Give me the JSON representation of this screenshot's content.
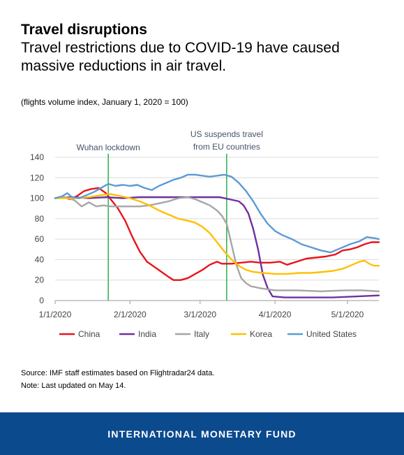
{
  "header": {
    "title": "Travel disruptions",
    "subtitle": "Travel restrictions due to COVID-19 have caused massive reductions in air travel."
  },
  "unit_note": "(flights volume index, January 1, 2020 = 100)",
  "source": {
    "line1": "Source: IMF staff estimates based on Flightradar24 data.",
    "line2": "Note: Last updated on May 14."
  },
  "footer": {
    "label": "INTERNATIONAL MONETARY FUND"
  },
  "chart_data": {
    "type": "line",
    "title": "",
    "xlabel": "",
    "ylabel": "",
    "x_range": [
      "2020-01-01",
      "2020-05-14"
    ],
    "xticks": [
      {
        "date": "2020-01-01",
        "label": "1/1/2020"
      },
      {
        "date": "2020-02-01",
        "label": "2/1/2020"
      },
      {
        "date": "2020-03-01",
        "label": "3/1/2020"
      },
      {
        "date": "2020-04-01",
        "label": "4/1/2020"
      },
      {
        "date": "2020-05-01",
        "label": "5/1/2020"
      }
    ],
    "ylim": [
      0,
      140
    ],
    "yticks": [
      0,
      20,
      40,
      60,
      80,
      100,
      120,
      140
    ],
    "grid": "horizontal",
    "legend_position": "bottom",
    "annotations": [
      {
        "date": "2020-01-23",
        "label": "Wuhan lockdown",
        "color": "#2db14a"
      },
      {
        "date": "2020-03-12",
        "label_lines": [
          "US suspends travel",
          "from EU countries"
        ],
        "color": "#2db14a"
      }
    ],
    "series": [
      {
        "name": "China",
        "color": "#e8141b",
        "points": [
          [
            "2020-01-01",
            100
          ],
          [
            "2020-01-05",
            101
          ],
          [
            "2020-01-07",
            99
          ],
          [
            "2020-01-10",
            102
          ],
          [
            "2020-01-13",
            107
          ],
          [
            "2020-01-16",
            109
          ],
          [
            "2020-01-19",
            110
          ],
          [
            "2020-01-22",
            105
          ],
          [
            "2020-01-24",
            99
          ],
          [
            "2020-01-27",
            90
          ],
          [
            "2020-01-30",
            78
          ],
          [
            "2020-02-02",
            62
          ],
          [
            "2020-02-05",
            48
          ],
          [
            "2020-02-08",
            38
          ],
          [
            "2020-02-11",
            33
          ],
          [
            "2020-02-14",
            28
          ],
          [
            "2020-02-17",
            23
          ],
          [
            "2020-02-19",
            20
          ],
          [
            "2020-02-22",
            20
          ],
          [
            "2020-02-25",
            22
          ],
          [
            "2020-02-28",
            26
          ],
          [
            "2020-03-02",
            30
          ],
          [
            "2020-03-05",
            35
          ],
          [
            "2020-03-08",
            38
          ],
          [
            "2020-03-10",
            36
          ],
          [
            "2020-03-14",
            36
          ],
          [
            "2020-03-18",
            37
          ],
          [
            "2020-03-22",
            38
          ],
          [
            "2020-03-26",
            37
          ],
          [
            "2020-03-30",
            37
          ],
          [
            "2020-04-03",
            38
          ],
          [
            "2020-04-06",
            35
          ],
          [
            "2020-04-10",
            38
          ],
          [
            "2020-04-14",
            41
          ],
          [
            "2020-04-18",
            42
          ],
          [
            "2020-04-22",
            43
          ],
          [
            "2020-04-26",
            45
          ],
          [
            "2020-04-29",
            49
          ],
          [
            "2020-05-02",
            50
          ],
          [
            "2020-05-05",
            52
          ],
          [
            "2020-05-08",
            55
          ],
          [
            "2020-05-11",
            57
          ],
          [
            "2020-05-14",
            57
          ]
        ]
      },
      {
        "name": "India",
        "color": "#7030a0",
        "points": [
          [
            "2020-01-01",
            100
          ],
          [
            "2020-01-08",
            101
          ],
          [
            "2020-01-15",
            100
          ],
          [
            "2020-01-22",
            101
          ],
          [
            "2020-01-29",
            100
          ],
          [
            "2020-02-05",
            101
          ],
          [
            "2020-02-12",
            101
          ],
          [
            "2020-02-19",
            101
          ],
          [
            "2020-02-26",
            101
          ],
          [
            "2020-03-04",
            101
          ],
          [
            "2020-03-09",
            101
          ],
          [
            "2020-03-13",
            99
          ],
          [
            "2020-03-17",
            97
          ],
          [
            "2020-03-19",
            93
          ],
          [
            "2020-03-21",
            85
          ],
          [
            "2020-03-23",
            70
          ],
          [
            "2020-03-25",
            50
          ],
          [
            "2020-03-27",
            25
          ],
          [
            "2020-03-29",
            12
          ],
          [
            "2020-03-31",
            4
          ],
          [
            "2020-04-05",
            3
          ],
          [
            "2020-04-15",
            3
          ],
          [
            "2020-04-25",
            3
          ],
          [
            "2020-05-05",
            4
          ],
          [
            "2020-05-14",
            5
          ]
        ]
      },
      {
        "name": "Italy",
        "color": "#a6a6a6",
        "points": [
          [
            "2020-01-01",
            100
          ],
          [
            "2020-01-05",
            101
          ],
          [
            "2020-01-09",
            98
          ],
          [
            "2020-01-12",
            92
          ],
          [
            "2020-01-15",
            96
          ],
          [
            "2020-01-18",
            92
          ],
          [
            "2020-01-21",
            93
          ],
          [
            "2020-01-24",
            92
          ],
          [
            "2020-01-28",
            92
          ],
          [
            "2020-02-01",
            92
          ],
          [
            "2020-02-05",
            92
          ],
          [
            "2020-02-09",
            93
          ],
          [
            "2020-02-13",
            95
          ],
          [
            "2020-02-17",
            97
          ],
          [
            "2020-02-21",
            100
          ],
          [
            "2020-02-25",
            101
          ],
          [
            "2020-02-28",
            99
          ],
          [
            "2020-03-02",
            96
          ],
          [
            "2020-03-05",
            93
          ],
          [
            "2020-03-08",
            88
          ],
          [
            "2020-03-10",
            83
          ],
          [
            "2020-03-12",
            75
          ],
          [
            "2020-03-14",
            55
          ],
          [
            "2020-03-16",
            35
          ],
          [
            "2020-03-18",
            22
          ],
          [
            "2020-03-20",
            17
          ],
          [
            "2020-03-22",
            14
          ],
          [
            "2020-03-26",
            12
          ],
          [
            "2020-04-01",
            10
          ],
          [
            "2020-04-10",
            10
          ],
          [
            "2020-04-20",
            9
          ],
          [
            "2020-04-30",
            10
          ],
          [
            "2020-05-07",
            10
          ],
          [
            "2020-05-14",
            9
          ]
        ]
      },
      {
        "name": "Korea",
        "color": "#ffc000",
        "points": [
          [
            "2020-01-01",
            100
          ],
          [
            "2020-01-05",
            100
          ],
          [
            "2020-01-10",
            100
          ],
          [
            "2020-01-15",
            101
          ],
          [
            "2020-01-20",
            103
          ],
          [
            "2020-01-24",
            104
          ],
          [
            "2020-01-28",
            102
          ],
          [
            "2020-02-01",
            100
          ],
          [
            "2020-02-05",
            97
          ],
          [
            "2020-02-09",
            93
          ],
          [
            "2020-02-13",
            88
          ],
          [
            "2020-02-17",
            84
          ],
          [
            "2020-02-21",
            80
          ],
          [
            "2020-02-25",
            78
          ],
          [
            "2020-02-28",
            76
          ],
          [
            "2020-03-02",
            72
          ],
          [
            "2020-03-05",
            66
          ],
          [
            "2020-03-08",
            57
          ],
          [
            "2020-03-11",
            48
          ],
          [
            "2020-03-14",
            40
          ],
          [
            "2020-03-17",
            34
          ],
          [
            "2020-03-20",
            30
          ],
          [
            "2020-03-23",
            28
          ],
          [
            "2020-03-27",
            27
          ],
          [
            "2020-04-01",
            26
          ],
          [
            "2020-04-06",
            26
          ],
          [
            "2020-04-11",
            27
          ],
          [
            "2020-04-16",
            27
          ],
          [
            "2020-04-21",
            28
          ],
          [
            "2020-04-25",
            29
          ],
          [
            "2020-04-29",
            31
          ],
          [
            "2020-05-03",
            35
          ],
          [
            "2020-05-06",
            38
          ],
          [
            "2020-05-08",
            39
          ],
          [
            "2020-05-10",
            36
          ],
          [
            "2020-05-12",
            34
          ],
          [
            "2020-05-14",
            34
          ]
        ]
      },
      {
        "name": "United States",
        "color": "#5b9bd5",
        "points": [
          [
            "2020-01-01",
            100
          ],
          [
            "2020-01-04",
            102
          ],
          [
            "2020-01-06",
            105
          ],
          [
            "2020-01-08",
            101
          ],
          [
            "2020-01-11",
            100
          ],
          [
            "2020-01-14",
            103
          ],
          [
            "2020-01-17",
            106
          ],
          [
            "2020-01-20",
            110
          ],
          [
            "2020-01-23",
            114
          ],
          [
            "2020-01-26",
            112
          ],
          [
            "2020-01-29",
            113
          ],
          [
            "2020-02-01",
            112
          ],
          [
            "2020-02-04",
            113
          ],
          [
            "2020-02-07",
            110
          ],
          [
            "2020-02-10",
            108
          ],
          [
            "2020-02-13",
            112
          ],
          [
            "2020-02-16",
            115
          ],
          [
            "2020-02-19",
            118
          ],
          [
            "2020-02-22",
            120
          ],
          [
            "2020-02-25",
            123
          ],
          [
            "2020-02-28",
            123
          ],
          [
            "2020-03-02",
            122
          ],
          [
            "2020-03-05",
            121
          ],
          [
            "2020-03-08",
            122
          ],
          [
            "2020-03-11",
            123
          ],
          [
            "2020-03-14",
            121
          ],
          [
            "2020-03-17",
            115
          ],
          [
            "2020-03-20",
            107
          ],
          [
            "2020-03-23",
            97
          ],
          [
            "2020-03-26",
            85
          ],
          [
            "2020-03-29",
            75
          ],
          [
            "2020-04-01",
            68
          ],
          [
            "2020-04-04",
            64
          ],
          [
            "2020-04-08",
            60
          ],
          [
            "2020-04-12",
            55
          ],
          [
            "2020-04-16",
            52
          ],
          [
            "2020-04-20",
            49
          ],
          [
            "2020-04-24",
            47
          ],
          [
            "2020-04-28",
            51
          ],
          [
            "2020-05-02",
            55
          ],
          [
            "2020-05-06",
            58
          ],
          [
            "2020-05-09",
            62
          ],
          [
            "2020-05-12",
            61
          ],
          [
            "2020-05-14",
            60
          ]
        ]
      }
    ]
  }
}
